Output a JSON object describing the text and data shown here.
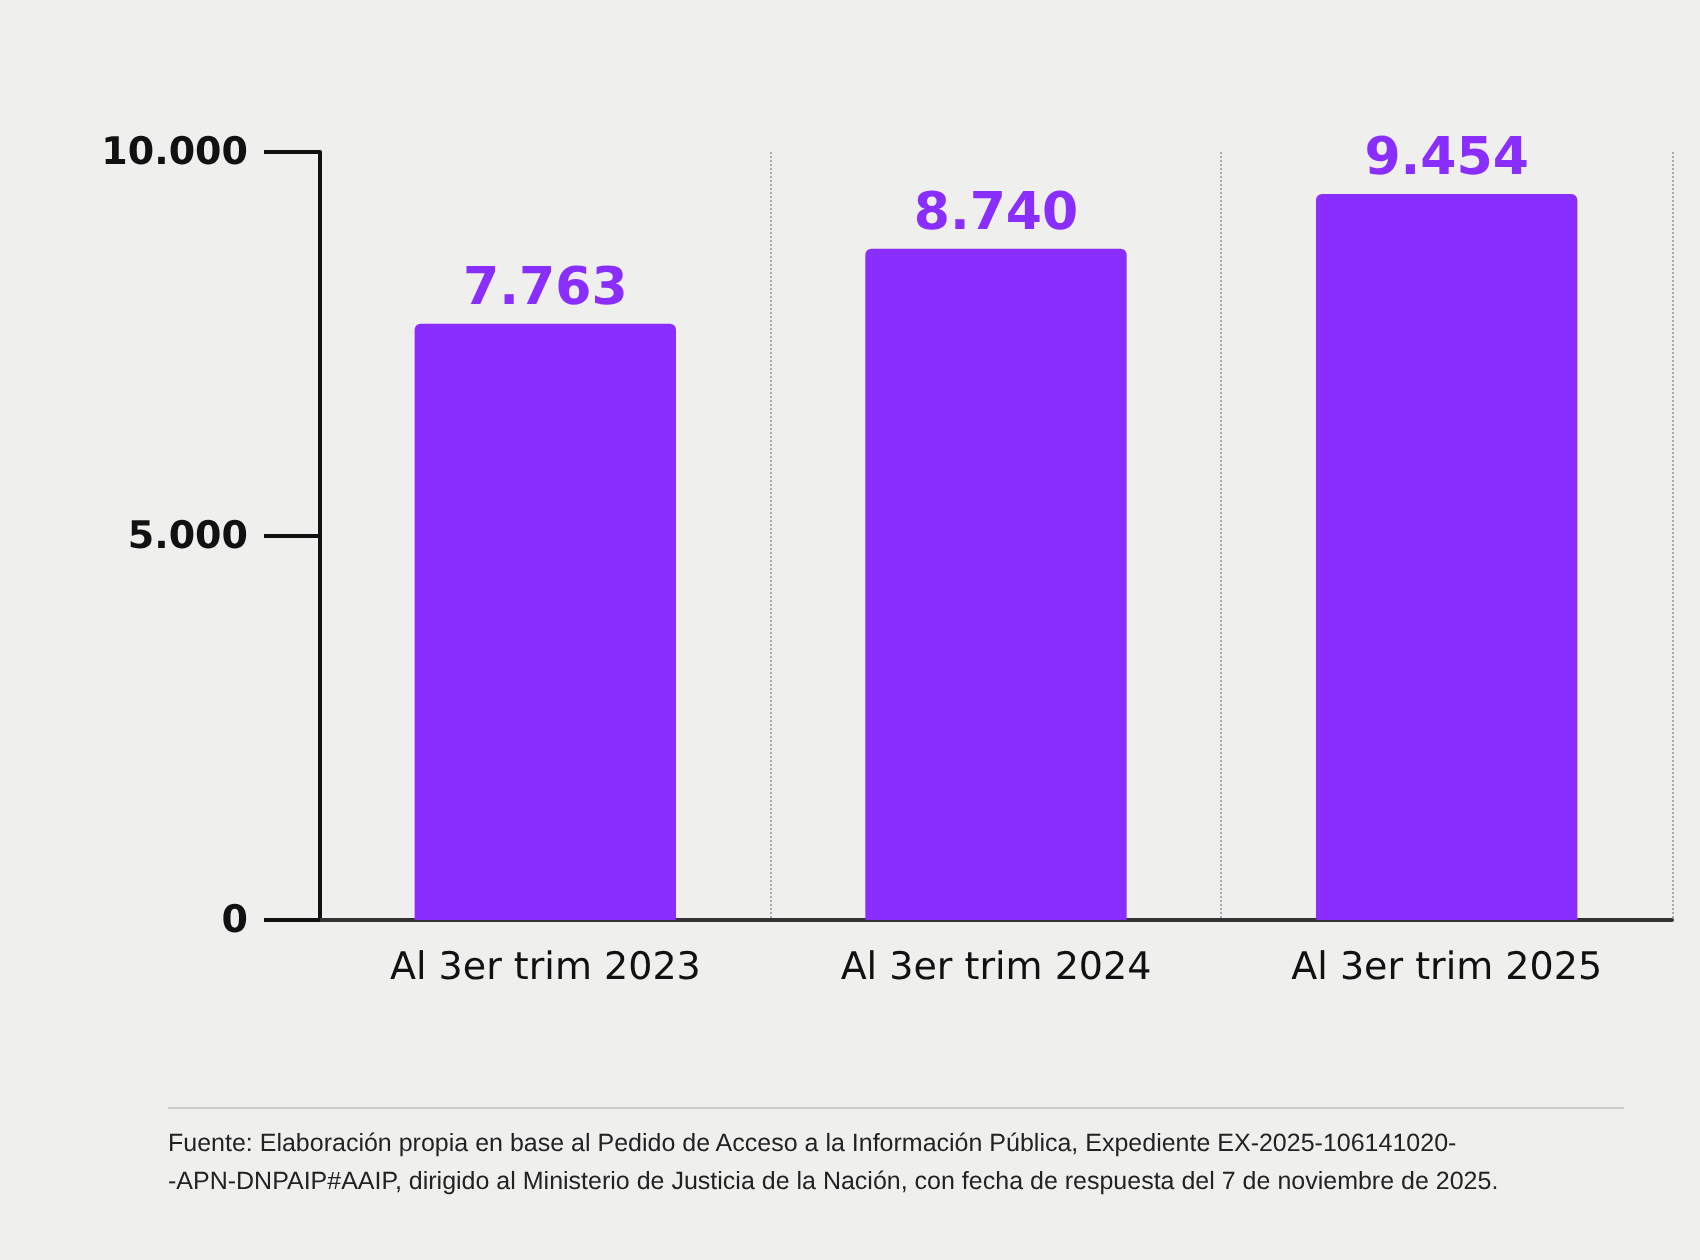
{
  "chart_data": {
    "type": "bar",
    "categories": [
      "Al 3er trim 2023",
      "Al 3er trim 2024",
      "Al 3er trim 2025"
    ],
    "values": [
      7763,
      8740,
      9454
    ],
    "color": "#8a2eff",
    "value_labels": [
      "7.763",
      "8.740",
      "9.454"
    ],
    "ylim": [
      0,
      10000
    ],
    "yticks": [
      0,
      {
        "value": 5000,
        "label": "5.000"
      },
      {
        "value": 10000,
        "label": "10.000"
      }
    ],
    "grid": "x",
    "annotations": [
      "Fuente: Elaboración propia en base al Pedido de Acceso a la Información Pública, Expediente EX-2025-106141020- -APN-DNPAIP#AAIP, dirigido al Ministerio de Justicia de la Nación, con fecha de respuesta del 7 de noviembre de 2025."
    ]
  }
}
